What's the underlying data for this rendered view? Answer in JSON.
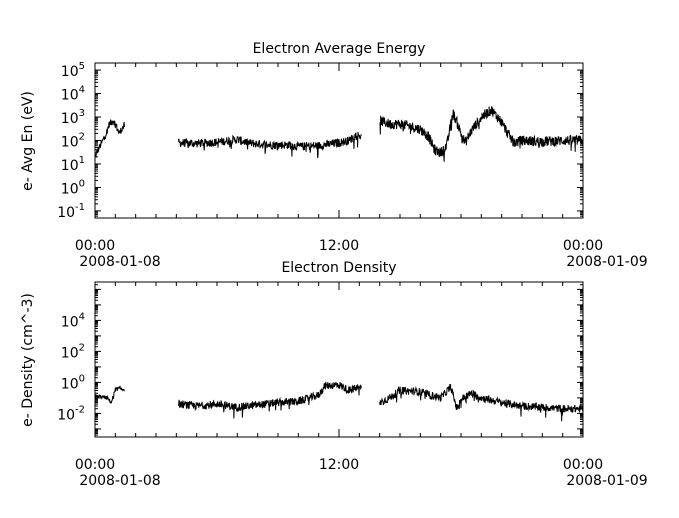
{
  "chart_data": [
    {
      "type": "line",
      "title": "Electron Average Energy",
      "ylabel": "e- Avg En (eV)",
      "yscale": "log",
      "ylim": [
        0.05,
        200000
      ],
      "ytick_base": "10",
      "yticks": [
        {
          "value": 0.1,
          "exp": "-1"
        },
        {
          "value": 1,
          "exp": "0"
        },
        {
          "value": 10,
          "exp": "1"
        },
        {
          "value": 100,
          "exp": "2"
        },
        {
          "value": 1000,
          "exp": "3"
        },
        {
          "value": 10000,
          "exp": "4"
        },
        {
          "value": 100000,
          "exp": "5"
        }
      ],
      "xlim_hours": [
        0,
        24
      ],
      "xticks": [
        {
          "hour": 0,
          "time": "00:00",
          "date": "2008-01-08"
        },
        {
          "hour": 12,
          "time": "12:00",
          "date": ""
        },
        {
          "hour": 24,
          "time": "00:00",
          "date": "2008-01-09"
        }
      ],
      "series": [
        {
          "segments": [
            {
              "start": 0.0,
              "end": 1.45,
              "anchors": [
                [
                  0.0,
                  20
                ],
                [
                  0.15,
                  40
                ],
                [
                  0.3,
                  70
                ],
                [
                  0.55,
                  200
                ],
                [
                  0.7,
                  500
                ],
                [
                  0.9,
                  700
                ],
                [
                  1.05,
                  400
                ],
                [
                  1.2,
                  200
                ],
                [
                  1.3,
                  300
                ],
                [
                  1.45,
                  450
                ]
              ],
              "noise": 0.15
            },
            {
              "start": 4.1,
              "end": 13.1,
              "anchors": [
                [
                  4.1,
                  80
                ],
                [
                  5.0,
                  75
                ],
                [
                  6.0,
                  85
                ],
                [
                  7.0,
                  110
                ],
                [
                  7.5,
                  80
                ],
                [
                  8.5,
                  65
                ],
                [
                  9.5,
                  65
                ],
                [
                  10.0,
                  55
                ],
                [
                  11.0,
                  60
                ],
                [
                  12.0,
                  80
                ],
                [
                  12.5,
                  100
                ],
                [
                  12.8,
                  160
                ],
                [
                  13.0,
                  180
                ],
                [
                  13.1,
                  120
                ]
              ],
              "noise": 0.18
            },
            {
              "start": 14.0,
              "end": 24.0,
              "anchors": [
                [
                  14.0,
                  700
                ],
                [
                  14.5,
                  500
                ],
                [
                  15.0,
                  500
                ],
                [
                  15.5,
                  400
                ],
                [
                  16.0,
                  300
                ],
                [
                  16.4,
                  150
                ],
                [
                  16.7,
                  40
                ],
                [
                  17.0,
                  30
                ],
                [
                  17.3,
                  60
                ],
                [
                  17.6,
                  1500
                ],
                [
                  17.8,
                  600
                ],
                [
                  18.0,
                  200
                ],
                [
                  18.2,
                  80
                ],
                [
                  18.5,
                  250
                ],
                [
                  19.0,
                  1000
                ],
                [
                  19.5,
                  2000
                ],
                [
                  20.0,
                  600
                ],
                [
                  20.3,
                  200
                ],
                [
                  20.6,
                  80
                ],
                [
                  21.0,
                  100
                ],
                [
                  22.0,
                  90
                ],
                [
                  23.0,
                  100
                ],
                [
                  24.0,
                  100
                ]
              ],
              "noise": 0.22
            }
          ]
        }
      ]
    },
    {
      "type": "line",
      "title": "Electron Density",
      "ylabel": "e- Density (cm^-3)",
      "yscale": "log",
      "ylim": [
        0.0003,
        3000000
      ],
      "ytick_base": "10",
      "yticks": [
        {
          "value": 0.01,
          "exp": "-2"
        },
        {
          "value": 1,
          "exp": "0"
        },
        {
          "value": 100,
          "exp": "2"
        },
        {
          "value": 10000,
          "exp": "4"
        }
      ],
      "xlim_hours": [
        0,
        24
      ],
      "xticks": [
        {
          "hour": 0,
          "time": "00:00",
          "date": "2008-01-08"
        },
        {
          "hour": 12,
          "time": "12:00",
          "date": ""
        },
        {
          "hour": 24,
          "time": "00:00",
          "date": "2008-01-09"
        }
      ],
      "series": [
        {
          "segments": [
            {
              "start": 0.0,
              "end": 1.45,
              "anchors": [
                [
                  0.0,
                  0.12
                ],
                [
                  0.3,
                  0.12
                ],
                [
                  0.6,
                  0.1
                ],
                [
                  0.8,
                  0.05
                ],
                [
                  1.0,
                  0.35
                ],
                [
                  1.2,
                  0.4
                ],
                [
                  1.45,
                  0.35
                ]
              ],
              "noise": 0.12
            },
            {
              "start": 4.1,
              "end": 13.1,
              "anchors": [
                [
                  4.1,
                  0.04
                ],
                [
                  5.0,
                  0.03
                ],
                [
                  6.0,
                  0.04
                ],
                [
                  7.0,
                  0.025
                ],
                [
                  8.0,
                  0.035
                ],
                [
                  9.0,
                  0.05
                ],
                [
                  10.0,
                  0.06
                ],
                [
                  11.0,
                  0.15
                ],
                [
                  11.3,
                  0.6
                ],
                [
                  12.0,
                  0.7
                ],
                [
                  12.5,
                  0.3
                ],
                [
                  13.0,
                  0.5
                ],
                [
                  13.1,
                  0.4
                ]
              ],
              "noise": 0.25
            },
            {
              "start": 14.0,
              "end": 24.0,
              "anchors": [
                [
                  14.0,
                  0.05
                ],
                [
                  14.5,
                  0.1
                ],
                [
                  15.0,
                  0.3
                ],
                [
                  16.0,
                  0.25
                ],
                [
                  16.5,
                  0.15
                ],
                [
                  17.0,
                  0.1
                ],
                [
                  17.5,
                  0.5
                ],
                [
                  17.8,
                  0.02
                ],
                [
                  18.0,
                  0.08
                ],
                [
                  18.5,
                  0.2
                ],
                [
                  19.0,
                  0.1
                ],
                [
                  20.0,
                  0.05
                ],
                [
                  21.0,
                  0.03
                ],
                [
                  22.0,
                  0.025
                ],
                [
                  23.0,
                  0.02
                ],
                [
                  24.0,
                  0.02
                ]
              ],
              "noise": 0.25
            }
          ]
        }
      ]
    }
  ]
}
